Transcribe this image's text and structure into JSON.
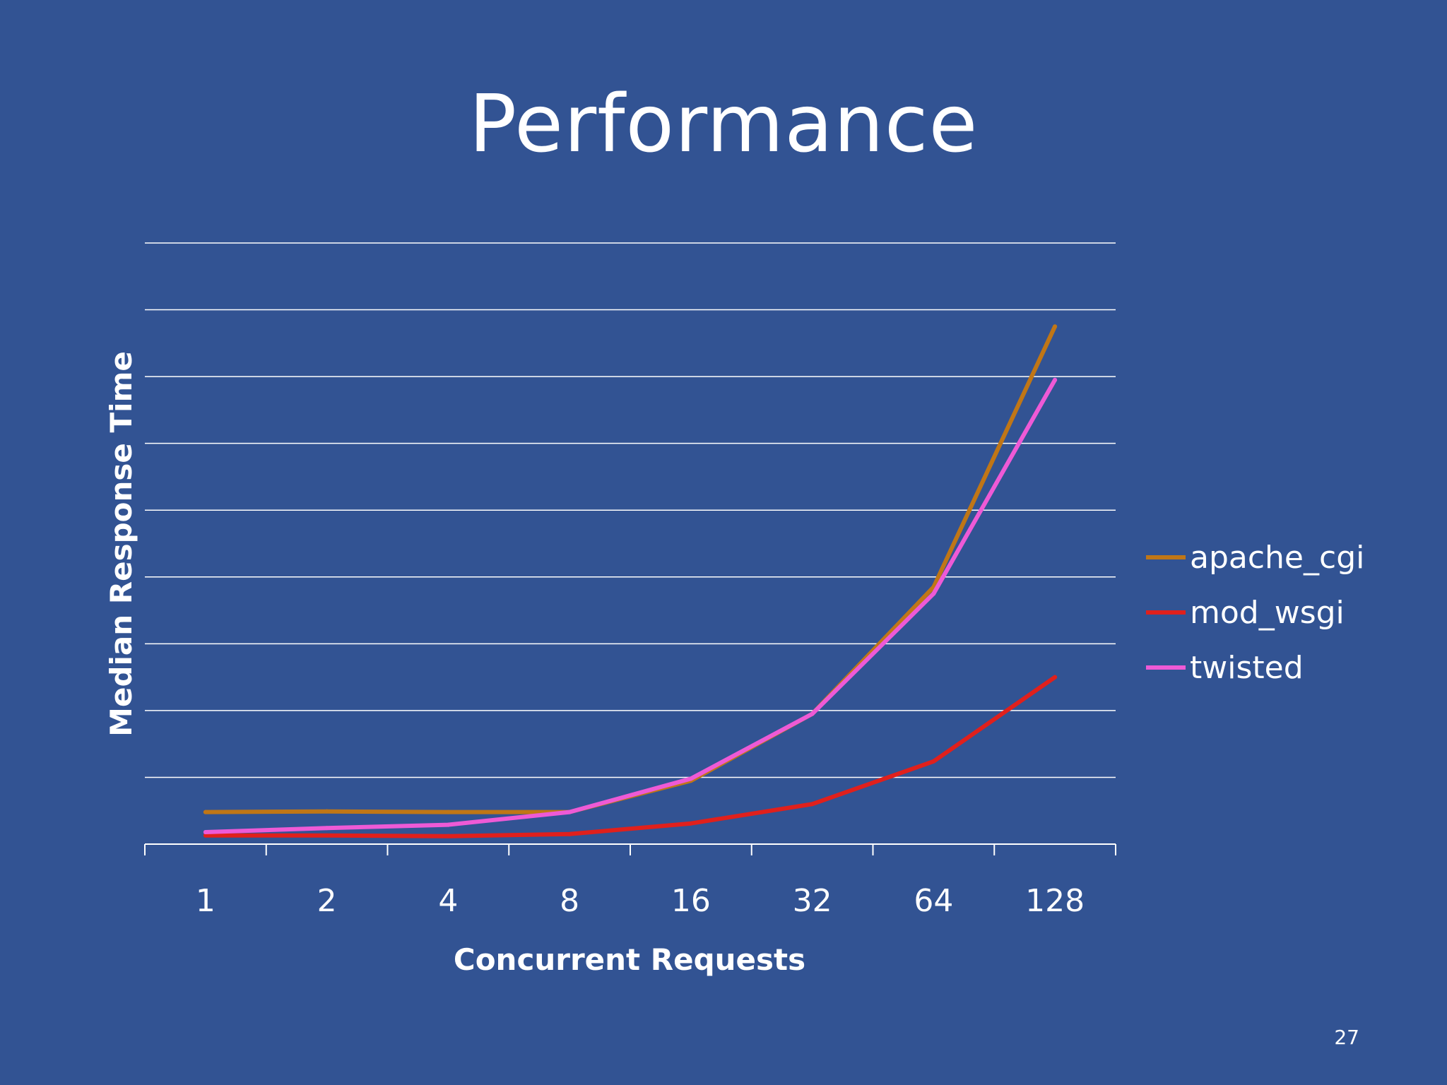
{
  "slide": {
    "title": "Performance",
    "page_number": "27"
  },
  "chart_data": {
    "type": "line",
    "title": "",
    "xlabel": "Concurrent Requests",
    "ylabel": "Median Response Time",
    "categories": [
      "1",
      "2",
      "4",
      "8",
      "16",
      "32",
      "64",
      "128"
    ],
    "ylim": [
      0,
      9
    ],
    "grid": true,
    "legend_position": "right",
    "series": [
      {
        "name": "apache_cgi",
        "color": "#c07616",
        "values": [
          0.48,
          0.49,
          0.48,
          0.48,
          0.95,
          1.95,
          3.85,
          7.75
        ]
      },
      {
        "name": "mod_wsgi",
        "color": "#e0201c",
        "values": [
          0.13,
          0.13,
          0.12,
          0.15,
          0.31,
          0.6,
          1.24,
          2.5
        ]
      },
      {
        "name": "twisted",
        "color": "#ee5ad6",
        "values": [
          0.18,
          0.24,
          0.29,
          0.48,
          0.98,
          1.95,
          3.75,
          6.95
        ]
      }
    ]
  }
}
